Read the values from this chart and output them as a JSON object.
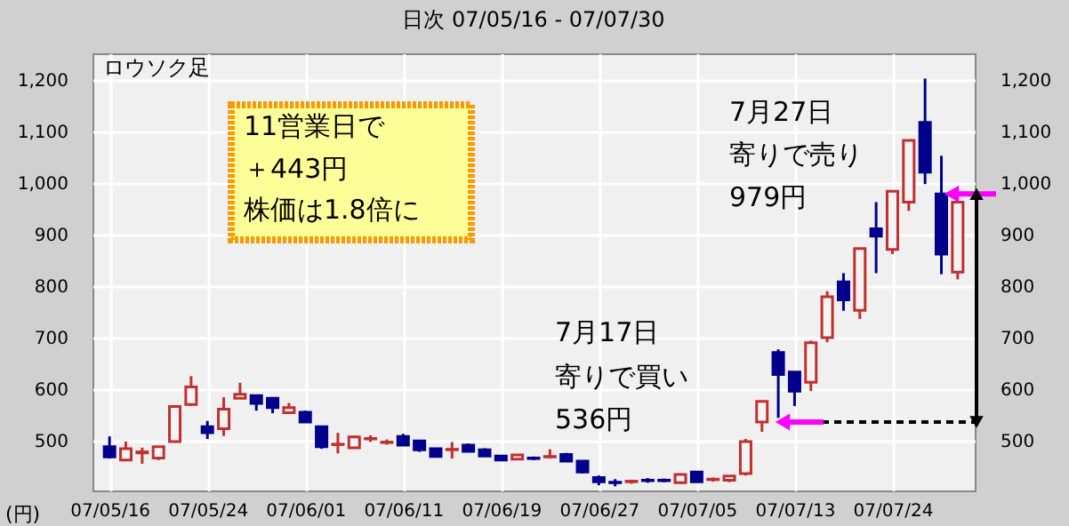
{
  "chart_data": {
    "type": "candlestick",
    "title": "日次 07/05/16 - 07/07/30",
    "ylabel": "(円)",
    "categories": [
      "07/05/16",
      null,
      null,
      null,
      null,
      null,
      "07/05/24",
      null,
      null,
      null,
      null,
      null,
      "07/06/01",
      null,
      null,
      null,
      null,
      null,
      "07/06/11",
      null,
      null,
      null,
      null,
      null,
      "07/06/19",
      null,
      null,
      null,
      null,
      null,
      "07/06/27",
      null,
      null,
      null,
      null,
      null,
      "07/07/05",
      null,
      null,
      null,
      null,
      null,
      "07/07/13",
      null,
      null,
      null,
      null,
      null,
      "07/07/24",
      null,
      null,
      null,
      null
    ],
    "ohlc": [
      [
        488,
        508,
        465,
        468
      ],
      [
        462,
        498,
        460,
        484
      ],
      [
        476,
        486,
        455,
        478
      ],
      [
        466,
        488,
        462,
        488
      ],
      [
        498,
        567,
        496,
        566
      ],
      [
        570,
        625,
        567,
        604
      ],
      [
        527,
        538,
        503,
        515
      ],
      [
        523,
        584,
        509,
        561
      ],
      [
        582,
        612,
        582,
        590
      ],
      [
        587,
        587,
        558,
        572
      ],
      [
        582,
        584,
        553,
        564
      ],
      [
        554,
        573,
        552,
        564
      ],
      [
        555,
        558,
        535,
        536
      ],
      [
        527,
        529,
        484,
        488
      ],
      [
        492,
        515,
        475,
        493
      ],
      [
        486,
        509,
        486,
        507
      ],
      [
        503,
        510,
        497,
        504
      ],
      [
        496,
        502,
        492,
        497
      ],
      [
        508,
        513,
        490,
        491
      ],
      [
        499,
        499,
        478,
        482
      ],
      [
        484,
        484,
        469,
        469
      ],
      [
        482,
        497,
        465,
        483
      ],
      [
        491,
        494,
        477,
        479
      ],
      [
        482,
        485,
        469,
        470
      ],
      [
        470,
        470,
        462,
        462
      ],
      [
        464,
        472,
        464,
        472
      ],
      [
        466,
        469,
        462,
        465
      ],
      [
        468,
        483,
        465,
        469
      ],
      [
        473,
        476,
        460,
        460
      ],
      [
        460,
        460,
        436,
        439
      ],
      [
        428,
        432,
        413,
        420
      ],
      [
        419,
        425,
        411,
        418
      ],
      [
        420,
        424,
        416,
        421
      ],
      [
        423,
        427,
        418,
        422
      ],
      [
        423,
        426,
        419,
        422
      ],
      [
        418,
        436,
        416,
        434
      ],
      [
        439,
        441,
        420,
        420
      ],
      [
        424,
        428,
        420,
        425
      ],
      [
        423,
        431,
        419,
        431
      ],
      [
        436,
        503,
        432,
        498
      ],
      [
        536,
        576,
        517,
        576
      ],
      [
        671,
        677,
        544,
        628
      ],
      [
        633,
        633,
        567,
        596
      ],
      [
        613,
        694,
        596,
        690
      ],
      [
        700,
        790,
        691,
        779
      ],
      [
        808,
        825,
        752,
        773
      ],
      [
        753,
        873,
        736,
        873
      ],
      [
        911,
        963,
        825,
        897
      ],
      [
        871,
        984,
        862,
        984
      ],
      [
        963,
        1083,
        946,
        1083
      ],
      [
        1118,
        1203,
        998,
        1021
      ],
      [
        979,
        1053,
        823,
        862
      ],
      [
        827,
        963,
        813,
        963
      ]
    ],
    "colors": [
      "#00008b",
      "#c03030",
      "#c03030",
      "#c03030",
      "#c03030",
      "#c03030",
      "#00008b",
      "#c03030",
      "#c03030",
      "#00008b",
      "#00008b",
      "#c03030",
      "#00008b",
      "#00008b",
      "#c03030",
      "#c03030",
      "#c03030",
      "#c03030",
      "#00008b",
      "#00008b",
      "#00008b",
      "#c03030",
      "#00008b",
      "#00008b",
      "#00008b",
      "#c03030",
      "#00008b",
      "#c03030",
      "#00008b",
      "#00008b",
      "#00008b",
      "#00008b",
      "#c03030",
      "#00008b",
      "#00008b",
      "#c03030",
      "#00008b",
      "#c03030",
      "#c03030",
      "#c03030",
      "#c03030",
      "#00008b",
      "#00008b",
      "#c03030",
      "#c03030",
      "#00008b",
      "#c03030",
      "#00008b",
      "#c03030",
      "#c03030",
      "#00008b",
      "#00008b",
      "#c03030"
    ],
    "ylim": [
      403,
      1252
    ],
    "yticks": [
      500,
      600,
      700,
      800,
      900,
      {
        "value": 1000,
        "label": "1,000"
      },
      {
        "value": 1100,
        "label": "1,100"
      },
      {
        "value": 1200,
        "label": "1,200"
      }
    ],
    "y2lim": [
      403,
      1252
    ],
    "y2ticks": [
      500,
      600,
      700,
      800,
      900,
      {
        "value": 1000,
        "label": "1,000"
      },
      {
        "value": 1100,
        "label": "1,100"
      },
      {
        "value": 1200,
        "label": "1,200"
      }
    ],
    "grid": true,
    "ref_lines": [
      {
        "axis": "y",
        "value": 536,
        "color": "#000000",
        "line_style": "dashed"
      }
    ],
    "annotations": [
      "ロウソク足",
      "11営業日で",
      "＋443円",
      "株価は1.8倍に",
      "7月17日",
      "寄りで買い",
      "536円",
      "7月27日",
      "寄りで売り",
      "979円"
    ]
  }
}
